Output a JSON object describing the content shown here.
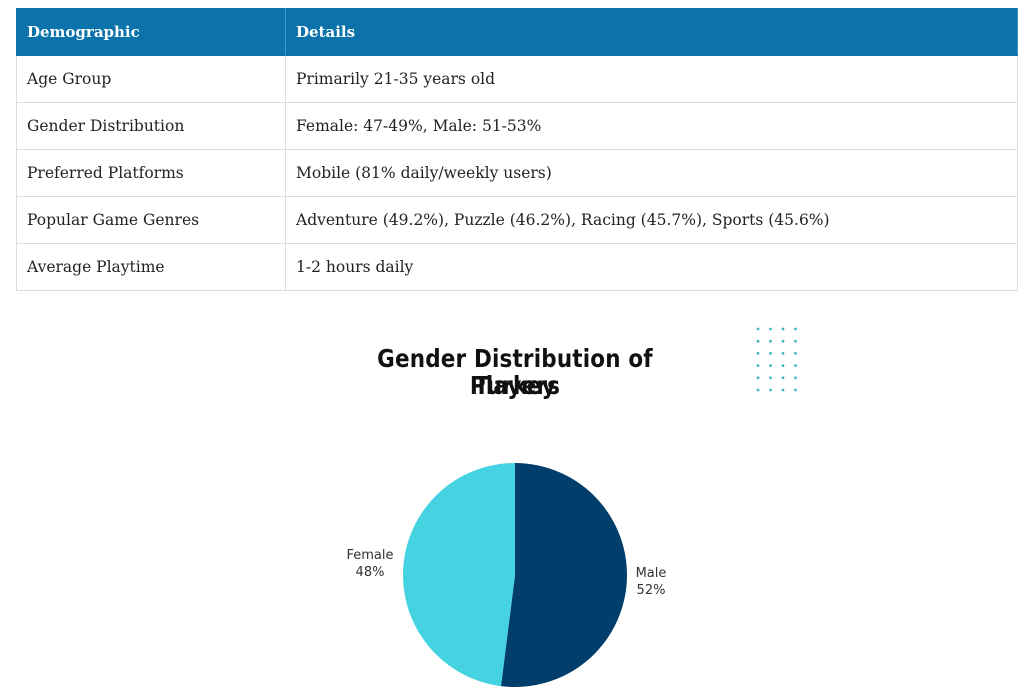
{
  "table": {
    "headers": [
      "Demographic",
      "Details"
    ],
    "rows": [
      [
        "Age Group",
        "Primarily 21-35 years old"
      ],
      [
        "Gender Distribution",
        "Female: 47-49%, Male: 51-53%"
      ],
      [
        "Preferred Platforms",
        "Mobile (81% daily/weekly users)"
      ],
      [
        "Popular Game Genres",
        "Adventure (49.2%), Puzzle (46.2%), Racing (45.7%), Sports (45.6%)"
      ],
      [
        "Average Playtime",
        "1-2 hours daily"
      ]
    ],
    "header_color": "#0b73aa"
  },
  "chart_data": {
    "type": "pie",
    "title": "Gender Distribution of Players",
    "subtitle": "Turkey",
    "slices": [
      {
        "label": "Male",
        "value": 52,
        "value_label": "52%",
        "color": "#023e6b"
      },
      {
        "label": "Female",
        "value": 48,
        "value_label": "48%",
        "color": "#45d3e2"
      }
    ],
    "decoration": "dotted-grid",
    "decoration_color": "#3fb6c0"
  }
}
